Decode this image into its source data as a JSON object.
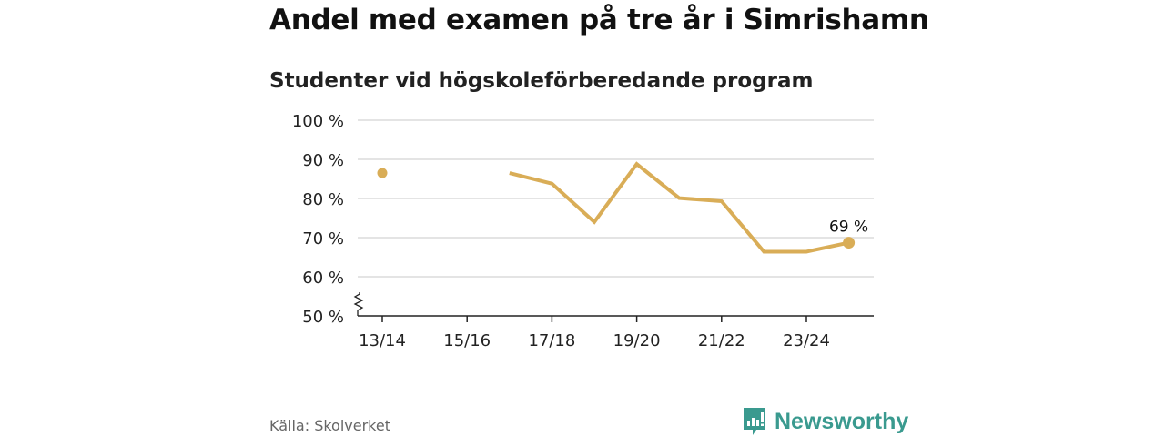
{
  "chart_data": {
    "type": "line",
    "title": "Andel med examen på tre år i Simrishamn",
    "subtitle": "Studenter vid högskoleförberedande program",
    "categories": [
      "13/14",
      "14/15",
      "15/16",
      "16/17",
      "17/18",
      "18/19",
      "19/20",
      "20/21",
      "21/22",
      "22/23",
      "23/24",
      "24/25"
    ],
    "tick_labels": [
      "13/14",
      "15/16",
      "17/18",
      "19/20",
      "21/22",
      "23/24"
    ],
    "series": [
      {
        "name": "Simrishamn",
        "values": [
          86.5,
          null,
          null,
          86.5,
          83.8,
          74.0,
          88.8,
          80.1,
          79.3,
          66.4,
          66.4,
          68.7
        ],
        "color": "#d9ad57"
      }
    ],
    "ylim": [
      50,
      100
    ],
    "yticks": [
      50,
      60,
      70,
      80,
      90,
      100
    ],
    "ytick_suffix": " %",
    "annotation": "69 %",
    "grid": true,
    "xlabel": "",
    "ylabel": ""
  },
  "footer": {
    "source": "Källa: Skolverket",
    "brand": "Newsworthy",
    "brand_color": "#3a9a8f"
  }
}
